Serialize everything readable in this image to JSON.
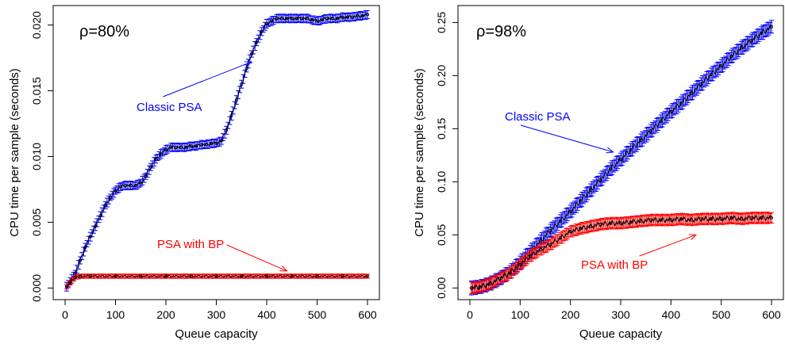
{
  "chart_data": [
    {
      "type": "line",
      "title": "",
      "xlabel": "Queue capacity",
      "ylabel": "CPU time per sample (seconds)",
      "xlim": [
        0,
        600
      ],
      "ylim": [
        0,
        0.021
      ],
      "xticks": [
        "0",
        "100",
        "200",
        "300",
        "400",
        "500",
        "600"
      ],
      "yticks": [
        "0.000",
        "0.005",
        "0.010",
        "0.015",
        "0.020"
      ],
      "annotations": [
        {
          "text": "ρ=80%",
          "kind": "label",
          "color": "#000000"
        },
        {
          "text": "Classic PSA",
          "kind": "arrow",
          "color": "#0000ff",
          "target_x": 370,
          "target_y": 0.0172
        },
        {
          "text": "PSA with BP",
          "kind": "arrow",
          "color": "#ff0000",
          "target_x": 440,
          "target_y": 0.0013
        }
      ],
      "series": [
        {
          "name": "Classic PSA",
          "color": "#0000ff",
          "x": [
            3,
            10,
            20,
            30,
            40,
            50,
            60,
            70,
            80,
            90,
            100,
            110,
            120,
            130,
            140,
            150,
            160,
            170,
            180,
            190,
            200,
            210,
            220,
            230,
            240,
            250,
            260,
            270,
            280,
            290,
            300,
            310,
            320,
            330,
            340,
            350,
            360,
            370,
            380,
            390,
            400,
            410,
            420,
            430,
            440,
            450,
            460,
            470,
            480,
            490,
            500,
            510,
            520,
            530,
            540,
            550,
            560,
            570,
            580,
            590,
            600
          ],
          "y": [
            0.0001,
            0.0005,
            0.0011,
            0.0021,
            0.0031,
            0.0039,
            0.0047,
            0.0055,
            0.0063,
            0.0069,
            0.0074,
            0.0077,
            0.0078,
            0.0078,
            0.0078,
            0.008,
            0.0085,
            0.0092,
            0.0098,
            0.0102,
            0.0105,
            0.0107,
            0.0107,
            0.0107,
            0.0107,
            0.0108,
            0.0108,
            0.0109,
            0.0109,
            0.011,
            0.011,
            0.0112,
            0.012,
            0.0131,
            0.0143,
            0.0155,
            0.0167,
            0.0178,
            0.0187,
            0.0195,
            0.0201,
            0.0203,
            0.0205,
            0.0205,
            0.0205,
            0.0205,
            0.0205,
            0.0205,
            0.0205,
            0.0204,
            0.0203,
            0.0204,
            0.0205,
            0.0205,
            0.0205,
            0.0206,
            0.0206,
            0.0206,
            0.0207,
            0.0207,
            0.0208
          ],
          "err": 0.0003
        },
        {
          "name": "PSA with BP",
          "color": "#ff0000",
          "x": [
            3,
            10,
            20,
            30,
            50,
            100,
            150,
            200,
            250,
            300,
            350,
            400,
            450,
            500,
            550,
            600
          ],
          "y": [
            0.0001,
            0.0004,
            0.0008,
            0.0009,
            0.0009,
            0.0009,
            0.0009,
            0.0009,
            0.0009,
            0.0009,
            0.0009,
            0.0009,
            0.0009,
            0.0009,
            0.0009,
            0.0009
          ],
          "err": 0.00015
        }
      ]
    },
    {
      "type": "line",
      "title": "",
      "xlabel": "Queue capacity",
      "ylabel": "CPU time per sample (seconds)",
      "xlim": [
        0,
        600
      ],
      "ylim": [
        0,
        0.26
      ],
      "xticks": [
        "0",
        "100",
        "200",
        "300",
        "400",
        "500",
        "600"
      ],
      "yticks": [
        "0.00",
        "0.05",
        "0.10",
        "0.15",
        "0.20",
        "0.25"
      ],
      "annotations": [
        {
          "text": "ρ=98%",
          "kind": "label",
          "color": "#000000"
        },
        {
          "text": "Classic PSA",
          "kind": "arrow",
          "color": "#0000ff",
          "target_x": 285,
          "target_y": 0.128
        },
        {
          "text": "PSA with BP",
          "kind": "arrow",
          "color": "#ff0000",
          "target_x": 450,
          "target_y": 0.05
        }
      ],
      "series": [
        {
          "name": "Classic PSA",
          "color": "#0000ff",
          "x": [
            3,
            20,
            40,
            60,
            80,
            100,
            120,
            140,
            160,
            180,
            200,
            220,
            240,
            260,
            280,
            300,
            320,
            340,
            360,
            380,
            400,
            420,
            440,
            460,
            480,
            500,
            520,
            540,
            560,
            580,
            600
          ],
          "y": [
            0.0,
            0.001,
            0.004,
            0.009,
            0.015,
            0.024,
            0.034,
            0.044,
            0.054,
            0.063,
            0.072,
            0.082,
            0.092,
            0.102,
            0.112,
            0.121,
            0.13,
            0.139,
            0.148,
            0.157,
            0.166,
            0.174,
            0.183,
            0.192,
            0.201,
            0.209,
            0.218,
            0.226,
            0.233,
            0.24,
            0.246
          ],
          "err": 0.006
        },
        {
          "name": "PSA with BP",
          "color": "#ff0000",
          "x": [
            3,
            20,
            40,
            60,
            80,
            100,
            120,
            140,
            160,
            180,
            200,
            220,
            240,
            260,
            280,
            300,
            320,
            340,
            360,
            380,
            400,
            420,
            440,
            460,
            480,
            500,
            520,
            540,
            560,
            580,
            600
          ],
          "y": [
            0.0,
            0.001,
            0.004,
            0.009,
            0.014,
            0.022,
            0.03,
            0.036,
            0.041,
            0.047,
            0.053,
            0.056,
            0.058,
            0.06,
            0.061,
            0.061,
            0.062,
            0.063,
            0.064,
            0.064,
            0.064,
            0.065,
            0.064,
            0.065,
            0.065,
            0.065,
            0.066,
            0.065,
            0.066,
            0.066,
            0.066
          ],
          "err": 0.005
        }
      ]
    }
  ]
}
